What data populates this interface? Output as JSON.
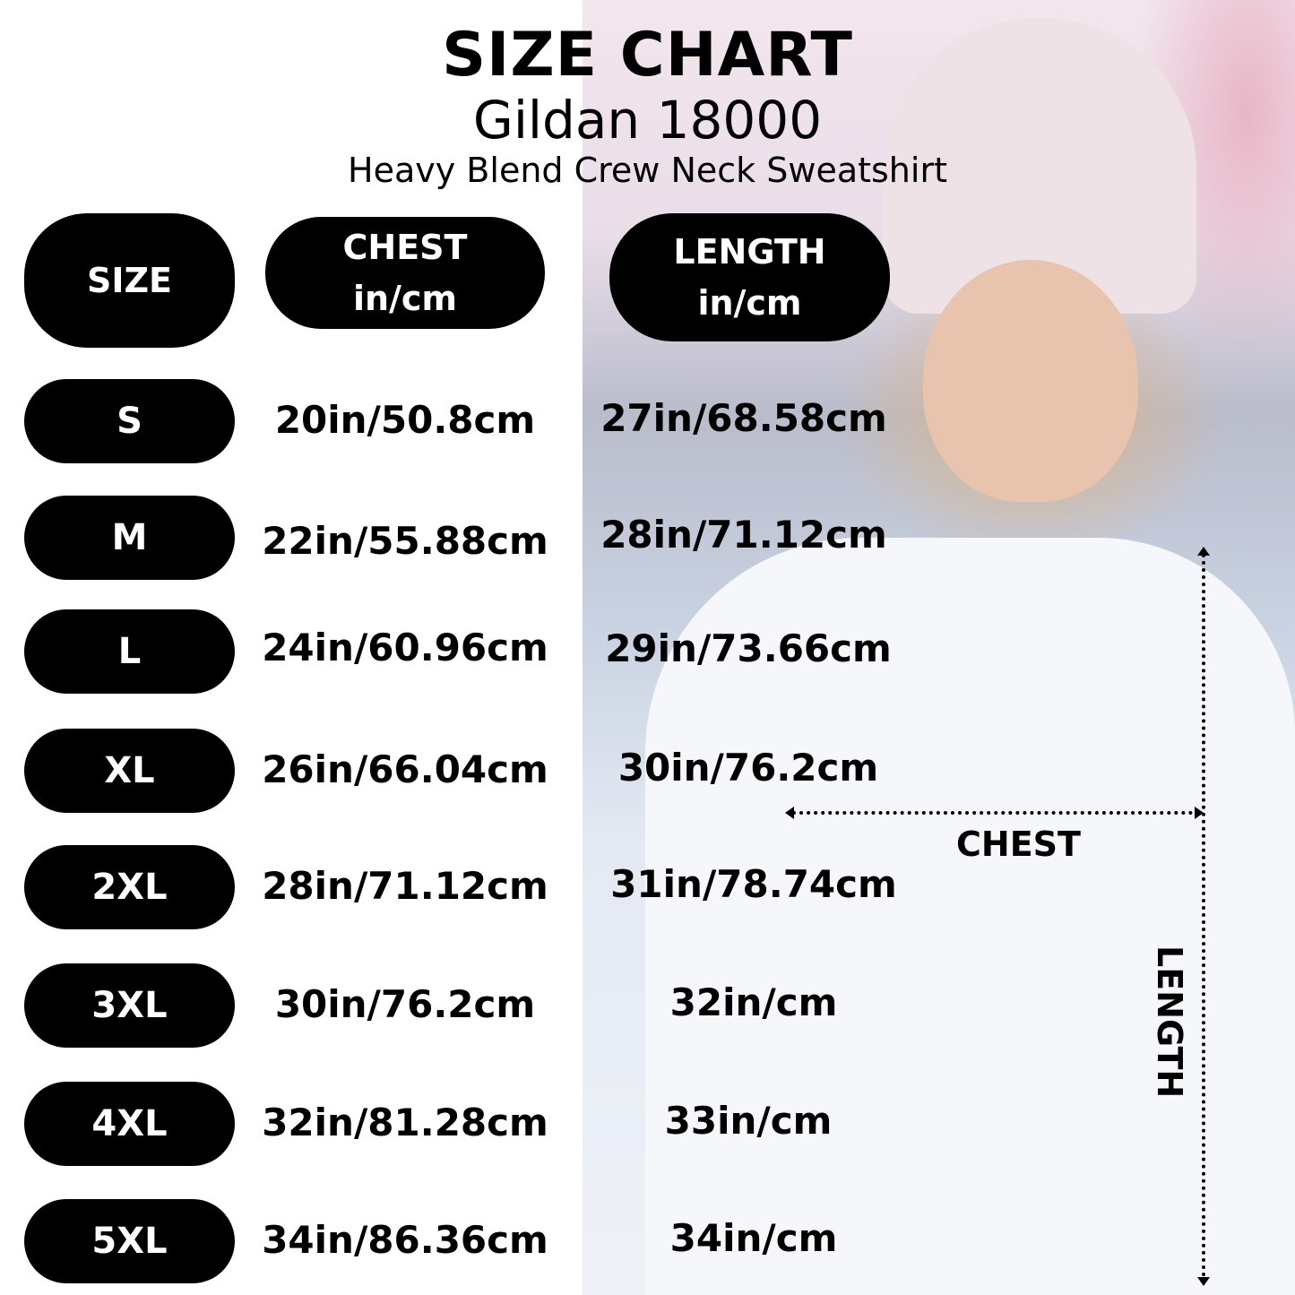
{
  "header": {
    "title": "SIZE CHART",
    "model": "Gildan 18000",
    "product": "Heavy Blend Crew Neck Sweatshirt"
  },
  "columns": {
    "size": "SIZE",
    "chest": {
      "name": "CHEST",
      "unit": "in/cm"
    },
    "length": {
      "name": "LENGTH",
      "unit": "in/cm"
    }
  },
  "rows": [
    {
      "size": "S",
      "chest": "20in/50.8cm",
      "length": "27in/68.58cm"
    },
    {
      "size": "M",
      "chest": "22in/55.88cm",
      "length": "28in/71.12cm"
    },
    {
      "size": "L",
      "chest": "24in/60.96cm",
      "length": "29in/73.66cm"
    },
    {
      "size": "XL",
      "chest": "26in/66.04cm",
      "length": "30in/76.2cm"
    },
    {
      "size": "2XL",
      "chest": "28in/71.12cm",
      "length": "31in/78.74cm"
    },
    {
      "size": "3XL",
      "chest": "30in/76.2cm",
      "length": "32in/cm"
    },
    {
      "size": "4XL",
      "chest": "32in/81.28cm",
      "length": "33in/cm"
    },
    {
      "size": "5XL",
      "chest": "34in/86.36cm",
      "length": "34in/cm"
    }
  ],
  "diagram": {
    "chest_label": "CHEST",
    "length_label": "LENGTH"
  }
}
